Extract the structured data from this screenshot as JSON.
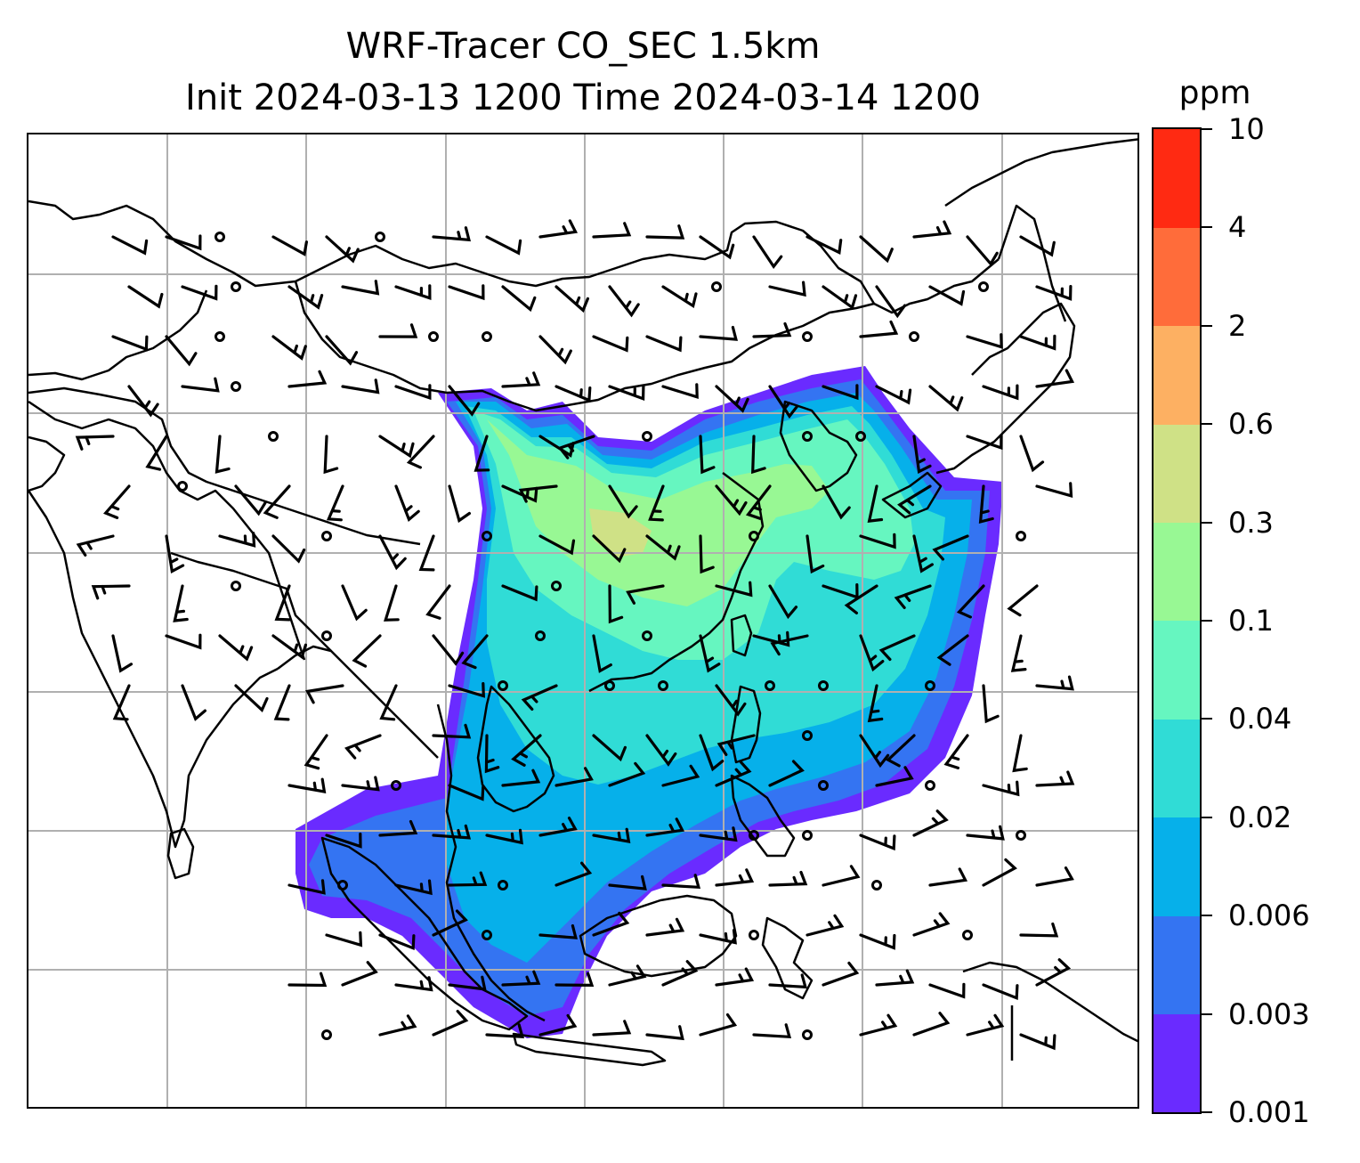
{
  "title": {
    "line1": "WRF-Tracer CO_SEC 1.5km",
    "line2": "Init 2024-03-13 1200 Time 2024-03-14 1200"
  },
  "colorbar": {
    "unit": "ppm",
    "levels": [
      "0.001",
      "0.003",
      "0.006",
      "0.02",
      "0.04",
      "0.1",
      "0.3",
      "0.6",
      "2",
      "4",
      "10"
    ],
    "colors": [
      "#6a2bff",
      "#3474f2",
      "#06b0ea",
      "#30dcd6",
      "#66f6c0",
      "#98f894",
      "#cfe186",
      "#fdb062",
      "#ff6c3a",
      "#ff2a12"
    ]
  },
  "map": {
    "gridlines": true,
    "coastline_color": "#000000",
    "grid_color": "#b0b0b0",
    "wind_barbs": true,
    "calm_circles": true
  }
}
